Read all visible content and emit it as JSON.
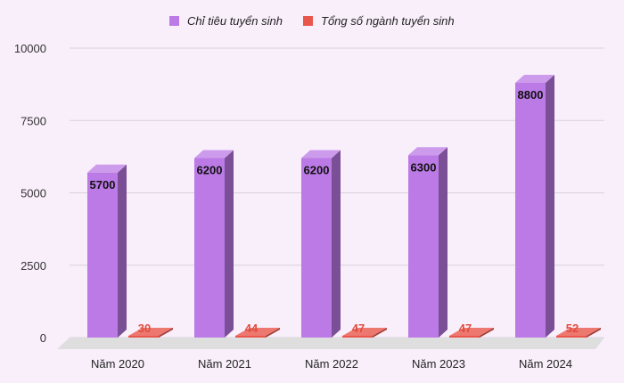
{
  "chart_data": {
    "type": "bar",
    "categories": [
      "Năm 2020",
      "Năm 2021",
      "Năm 2022",
      "Năm 2023",
      "Năm 2024"
    ],
    "series": [
      {
        "name": "Chỉ tiêu tuyển sinh",
        "values": [
          5700,
          6200,
          6200,
          6300,
          8800
        ],
        "color": "#bb7ae6"
      },
      {
        "name": "Tổng số ngành tuyển sinh",
        "values": [
          30,
          44,
          47,
          47,
          52
        ],
        "color": "#e8564c"
      }
    ],
    "ylim": [
      0,
      10000
    ],
    "yticks": [
      0,
      2500,
      5000,
      7500,
      10000
    ],
    "grid": true,
    "legend": "top-center",
    "style": "3d-columns"
  }
}
